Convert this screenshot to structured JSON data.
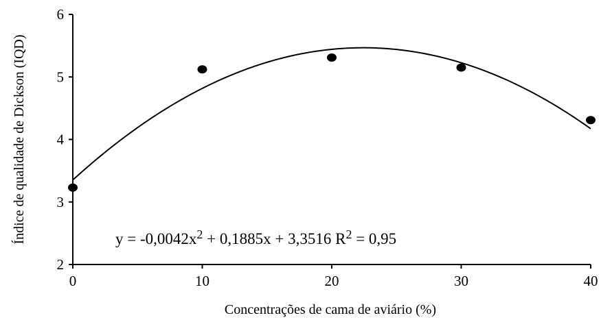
{
  "chart_data": {
    "type": "scatter",
    "xlabel": "Concentrações de cama de aviário (%)",
    "ylabel": "Índice de qualidade de Dickson (IQD)",
    "xlim": [
      0,
      40
    ],
    "ylim": [
      2,
      6
    ],
    "x_ticks": [
      "0",
      "10",
      "20",
      "30",
      "40"
    ],
    "y_ticks": [
      "2",
      "3",
      "4",
      "5",
      "6"
    ],
    "grid": false,
    "points": [
      {
        "x": 0,
        "y": 3.23
      },
      {
        "x": 10,
        "y": 5.12
      },
      {
        "x": 20,
        "y": 5.31
      },
      {
        "x": 30,
        "y": 5.15
      },
      {
        "x": 40,
        "y": 4.31
      }
    ],
    "trendline": {
      "type": "quadratic",
      "coefficients": {
        "a": -0.0042,
        "b": 0.1885,
        "c": 3.3516
      }
    },
    "equation": {
      "lhs": "y = -0,0042x",
      "exp1": "2",
      "rest": " + 0,1885x + 3,3516   R",
      "exp2": "2",
      "tail": " = 0,95"
    }
  }
}
